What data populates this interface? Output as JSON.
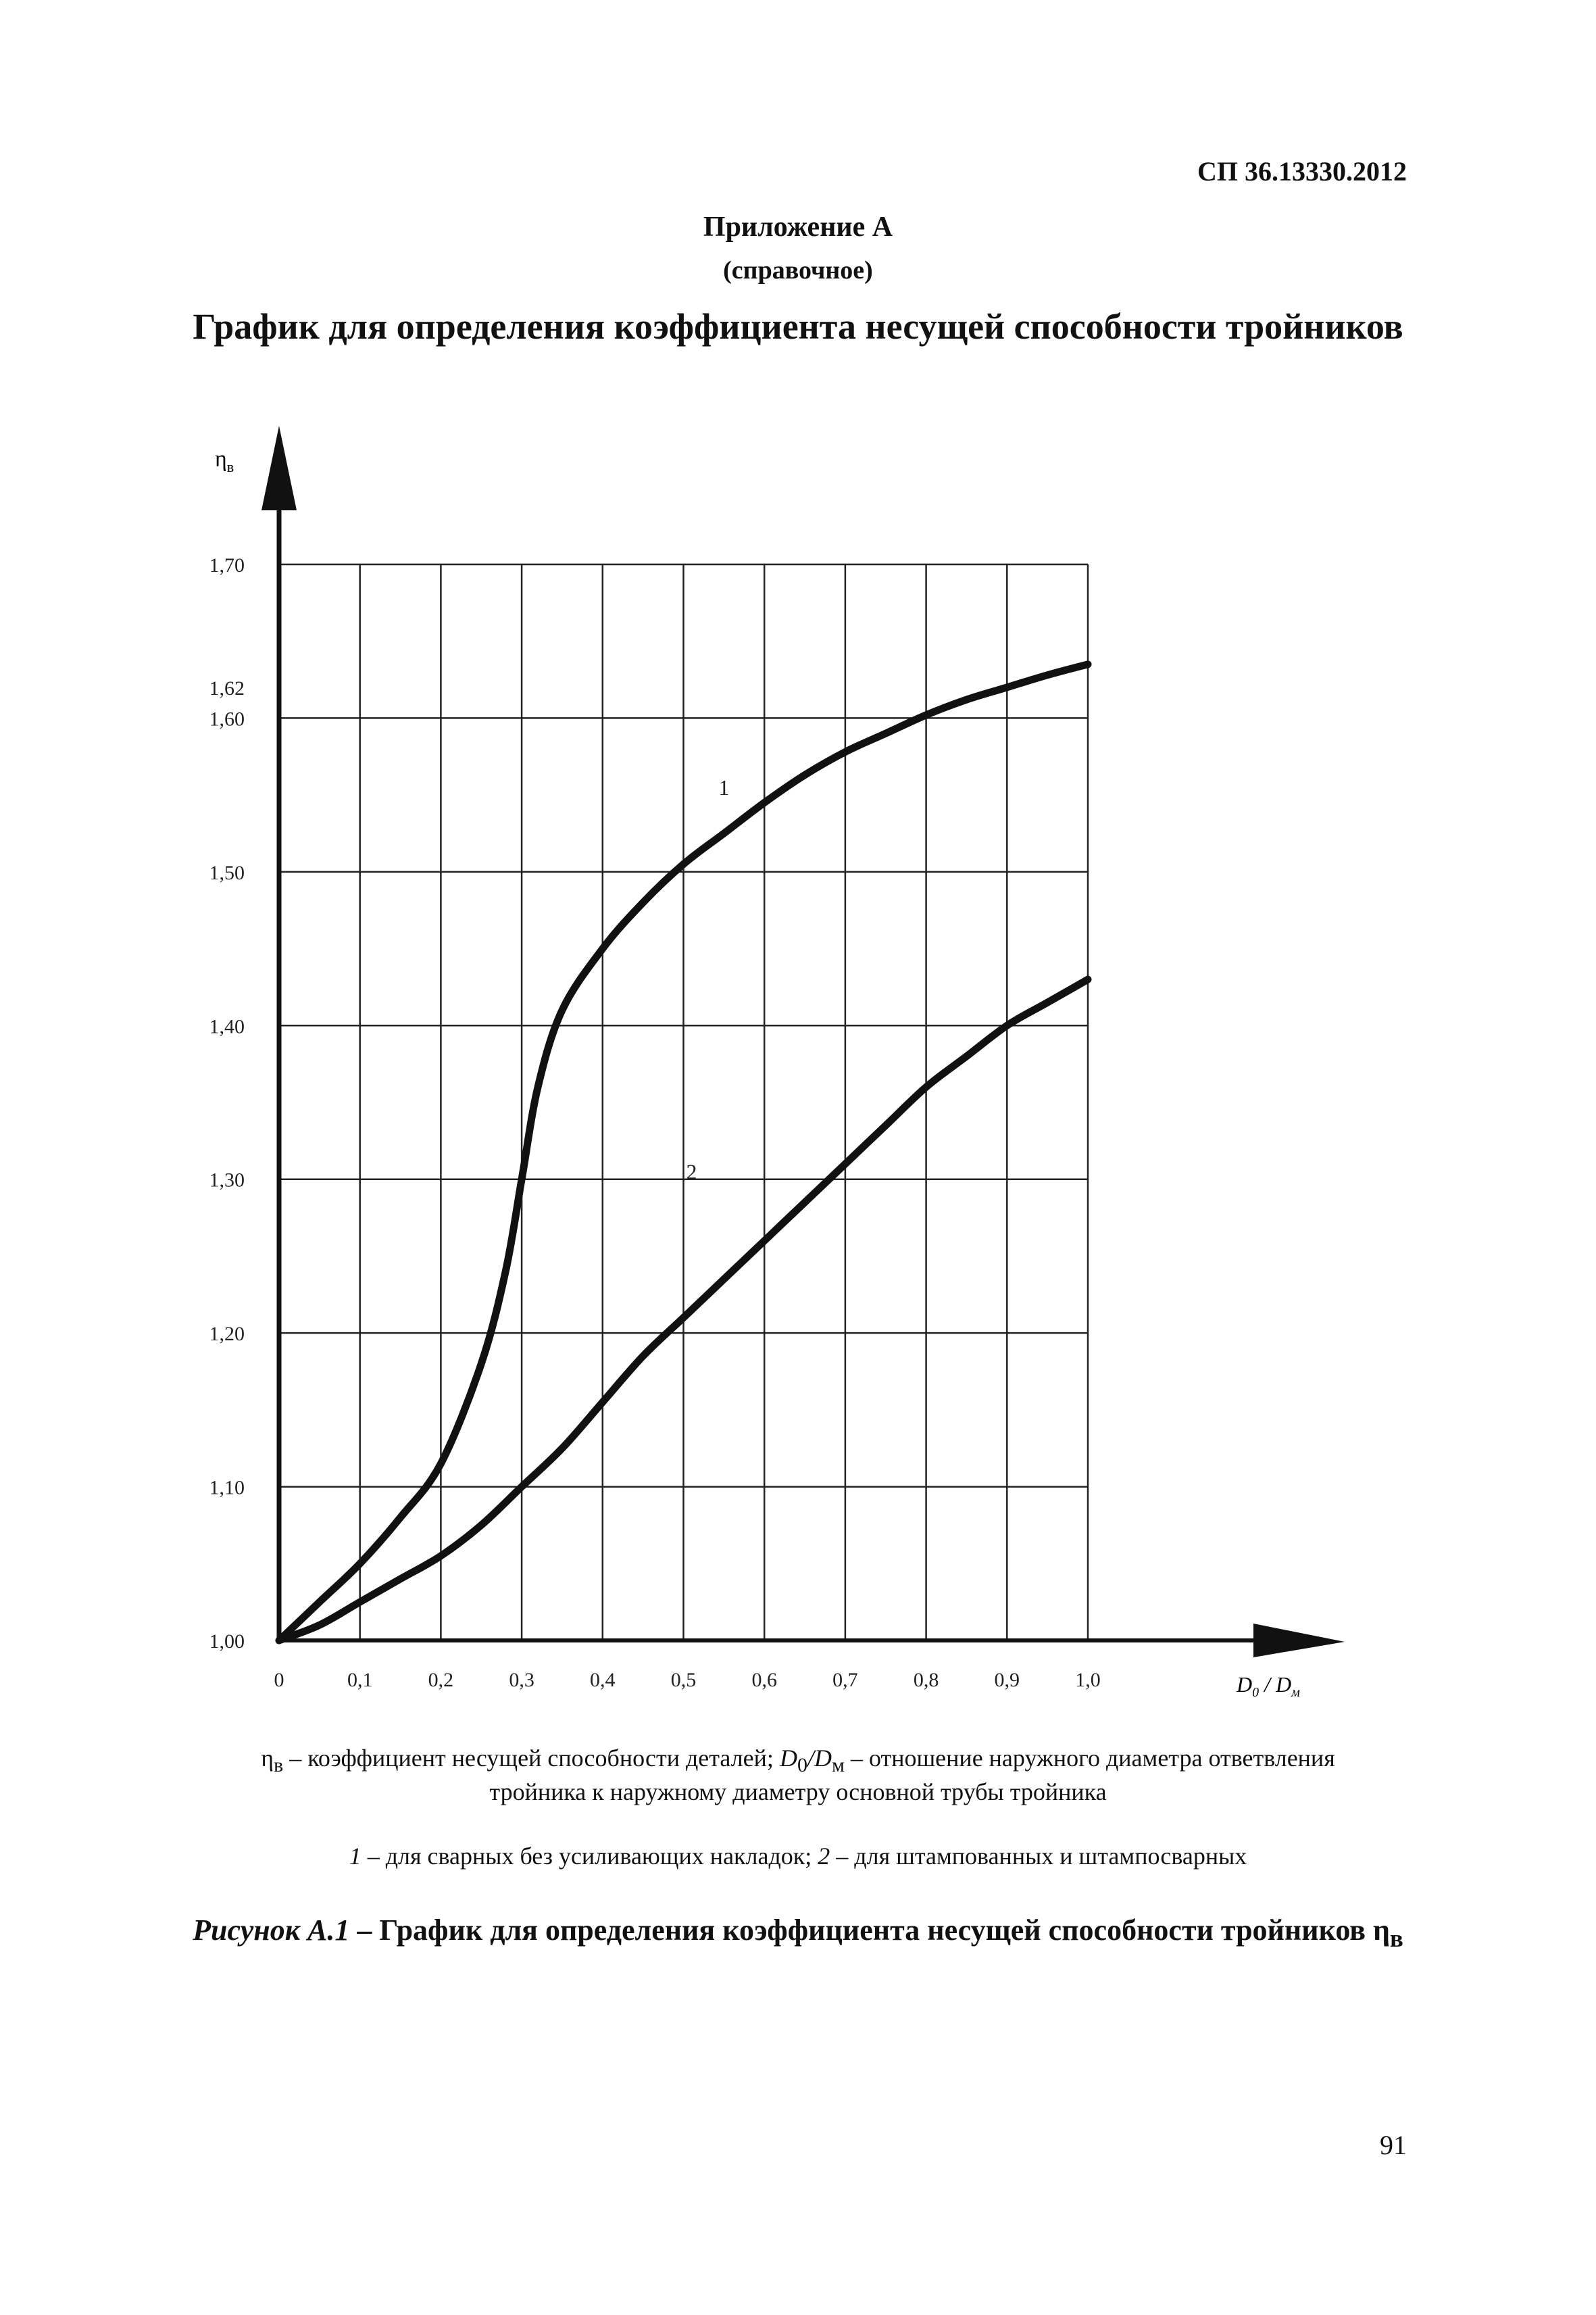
{
  "header": {
    "doc_code": "СП 36.13330.2012",
    "appendix_title": "Приложение А",
    "appendix_subtitle": "(справочное)",
    "main_title": "График для определения коэффициента несущей способности тройников"
  },
  "chart_data": {
    "type": "line",
    "ylabel": "η",
    "ylabel_sub": "в",
    "xlabel_D": "D",
    "xlabel_sub0": "0",
    "xlabel_sep": " / ",
    "xlabel_D2": "D",
    "xlabel_subM": "м",
    "xlim": [
      0,
      1.0
    ],
    "ylim": [
      1.0,
      1.7
    ],
    "x_ticks": [
      0,
      0.1,
      0.2,
      0.3,
      0.4,
      0.5,
      0.6,
      0.7,
      0.8,
      0.9,
      1.0
    ],
    "x_tick_labels": [
      "0",
      "0,1",
      "0,2",
      "0,3",
      "0,4",
      "0,5",
      "0,6",
      "0,7",
      "0,8",
      "0,9",
      "1,0"
    ],
    "y_ticks": [
      1.0,
      1.1,
      1.2,
      1.3,
      1.4,
      1.5,
      1.6,
      1.62,
      1.7
    ],
    "y_tick_labels": [
      "1,00",
      "1,10",
      "1,20",
      "1,30",
      "1,40",
      "1,50",
      "1,60",
      "1,62",
      "1,70"
    ],
    "grid": true,
    "series": [
      {
        "name": "1",
        "x": [
          0,
          0.05,
          0.1,
          0.15,
          0.2,
          0.25,
          0.28,
          0.3,
          0.32,
          0.35,
          0.4,
          0.45,
          0.5,
          0.55,
          0.6,
          0.65,
          0.7,
          0.75,
          0.8,
          0.85,
          0.9,
          0.95,
          1.0
        ],
        "y": [
          1.0,
          1.025,
          1.05,
          1.08,
          1.115,
          1.18,
          1.24,
          1.3,
          1.36,
          1.41,
          1.45,
          1.48,
          1.505,
          1.525,
          1.545,
          1.563,
          1.578,
          1.59,
          1.602,
          1.612,
          1.62,
          1.628,
          1.635
        ]
      },
      {
        "name": "2",
        "x": [
          0,
          0.05,
          0.1,
          0.15,
          0.2,
          0.25,
          0.3,
          0.35,
          0.4,
          0.45,
          0.5,
          0.55,
          0.6,
          0.65,
          0.7,
          0.75,
          0.8,
          0.85,
          0.9,
          0.95,
          1.0
        ],
        "y": [
          1.0,
          1.01,
          1.025,
          1.04,
          1.055,
          1.075,
          1.1,
          1.125,
          1.155,
          1.185,
          1.21,
          1.235,
          1.26,
          1.285,
          1.31,
          1.335,
          1.36,
          1.38,
          1.4,
          1.415,
          1.43
        ]
      }
    ]
  },
  "captions": {
    "line1_sym": "η",
    "line1_sub": "в",
    "line1_a": " – коэффициент несущей способности деталей; ",
    "line1_D": "D",
    "line1_sub0": "0",
    "line1_slash": "/",
    "line1_D2": "D",
    "line1_subM": "м",
    "line1_b": " – отношение наружного диаметра ответвления",
    "line2": "тройника к наружному диаметру основной трубы тройника",
    "line3_n1": "1",
    "line3_t1": " – для сварных без усиливающих накладок; ",
    "line3_n2": "2",
    "line3_t2": " – для штампованных и штампосварных"
  },
  "figure_caption": {
    "label": "Рисунок А.1",
    "text": " – График для определения коэффициента несущей способности тройников ",
    "sym": "η",
    "sub": "в"
  },
  "page_number": "91"
}
